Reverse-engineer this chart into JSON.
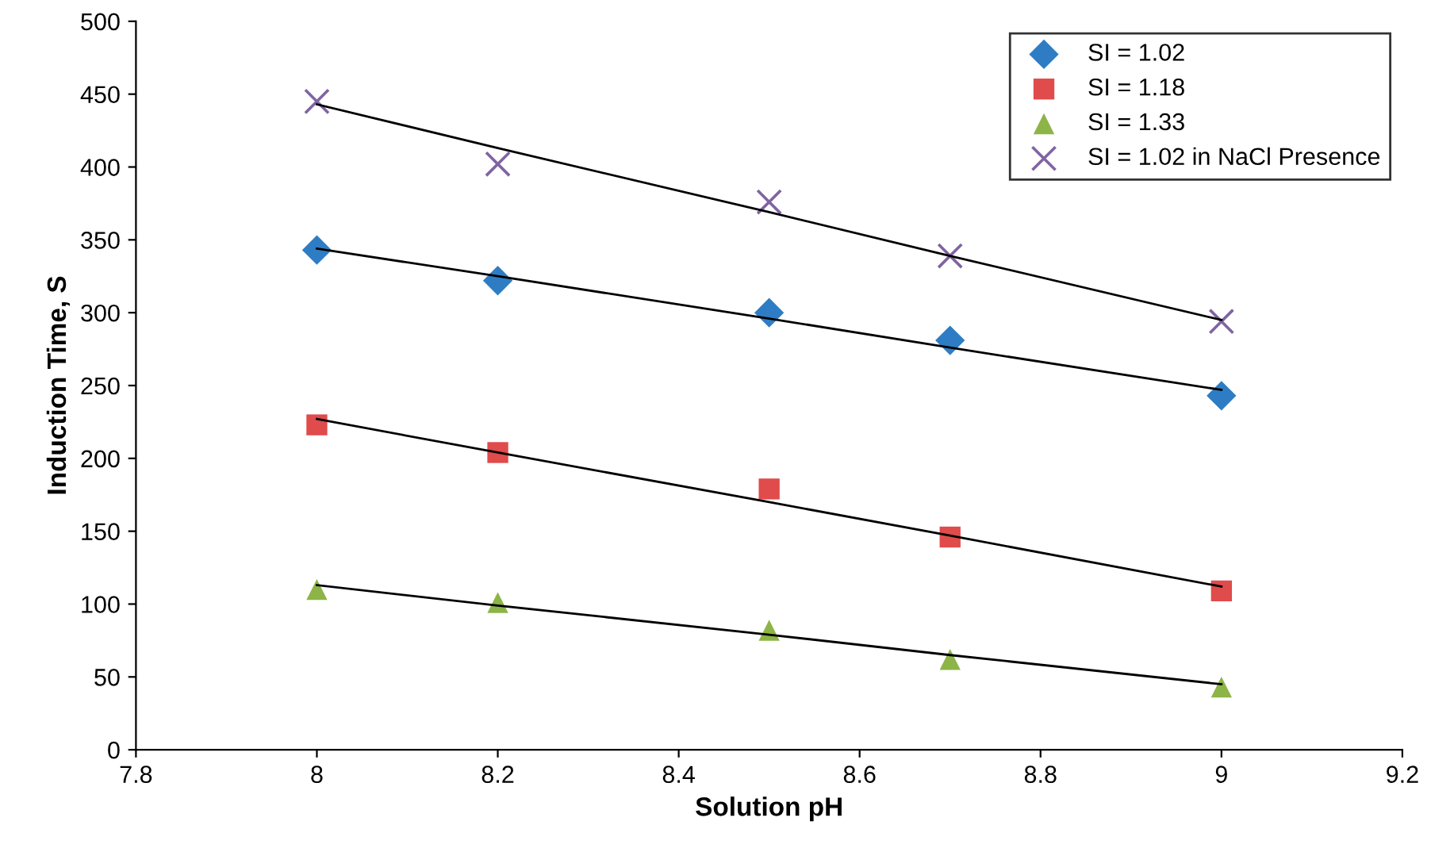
{
  "chart_data": {
    "type": "scatter",
    "xlabel": "Solution pH",
    "ylabel": "Induction Time, S",
    "xlim": [
      7.8,
      9.2
    ],
    "xticks": [
      7.8,
      8,
      8.2,
      8.4,
      8.6,
      8.8,
      9,
      9.2
    ],
    "ylim": [
      0,
      500
    ],
    "yticks": [
      0,
      50,
      100,
      150,
      200,
      250,
      300,
      350,
      400,
      450,
      500
    ],
    "x": [
      8,
      8.2,
      8.5,
      8.7,
      9
    ],
    "grid": false,
    "legend": "top right",
    "series": [
      {
        "name": "SI = 1.02",
        "color": "#2e7dc4",
        "marker": "diamond",
        "values": [
          343,
          322,
          300,
          281,
          243
        ]
      },
      {
        "name": "SI = 1.18",
        "color": "#e04b4b",
        "marker": "square",
        "values": [
          223,
          204,
          179,
          146,
          109
        ]
      },
      {
        "name": "SI = 1.33",
        "color": "#8db447",
        "marker": "triangle",
        "values": [
          110,
          101,
          82,
          62,
          43
        ]
      },
      {
        "name": "SI = 1.02 in NaCl Presence",
        "color": "#8064a2",
        "marker": "cross",
        "values": [
          445,
          402,
          376,
          339,
          294
        ]
      },
      {
        "type": "line",
        "color": "#000000",
        "marker": "none",
        "values": [
          344,
          325,
          296,
          276,
          247
        ]
      },
      {
        "type": "line",
        "color": "#000000",
        "marker": "none",
        "values": [
          227,
          204,
          170,
          147,
          112
        ]
      },
      {
        "type": "line",
        "color": "#000000",
        "marker": "none",
        "values": [
          113,
          99,
          79,
          65,
          45
        ]
      },
      {
        "type": "line",
        "color": "#000000",
        "marker": "none",
        "values": [
          443,
          413,
          369,
          339,
          295
        ]
      }
    ]
  }
}
